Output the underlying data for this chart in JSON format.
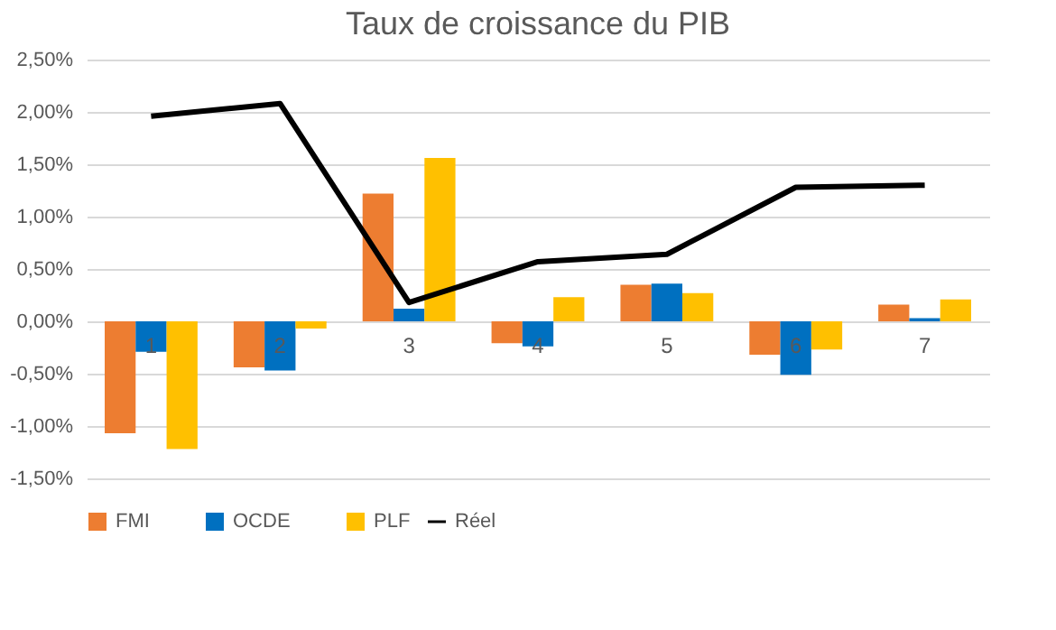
{
  "chart_data": {
    "type": "bar",
    "title": "Taux de croissance du PIB",
    "categories": [
      "1",
      "2",
      "3",
      "4",
      "5",
      "6",
      "7"
    ],
    "series": [
      {
        "name": "FMI",
        "color": "#ed7d31",
        "values": [
          -1.07,
          -0.44,
          1.22,
          -0.21,
          0.35,
          -0.32,
          0.16
        ]
      },
      {
        "name": "OCDE",
        "color": "#0070c0",
        "values": [
          -0.29,
          -0.47,
          0.12,
          -0.24,
          0.36,
          -0.51,
          0.03
        ]
      },
      {
        "name": "PLF",
        "color": "#ffc000",
        "values": [
          -1.22,
          -0.07,
          1.56,
          0.23,
          0.27,
          -0.27,
          0.21
        ]
      },
      {
        "name": "Réel",
        "color": "#000000",
        "type": "line",
        "values": [
          1.96,
          2.08,
          0.18,
          0.57,
          0.64,
          1.28,
          1.3
        ]
      }
    ],
    "ylim": [
      -1.5,
      2.5
    ],
    "yticks": [
      {
        "value": -1.5,
        "label": "-1,50%"
      },
      {
        "value": -1,
        "label": "-1,00%"
      },
      {
        "value": -0.5,
        "label": "-0,50%"
      },
      {
        "value": 0,
        "label": "0,00%"
      },
      {
        "value": 0.5,
        "label": "0,50%"
      },
      {
        "value": 1,
        "label": "1,00%"
      },
      {
        "value": 1.5,
        "label": "1,50%"
      },
      {
        "value": 2,
        "label": "2,00%"
      },
      {
        "value": 2.5,
        "label": "2,50%"
      }
    ],
    "grid": "y",
    "legend": "bottom"
  }
}
